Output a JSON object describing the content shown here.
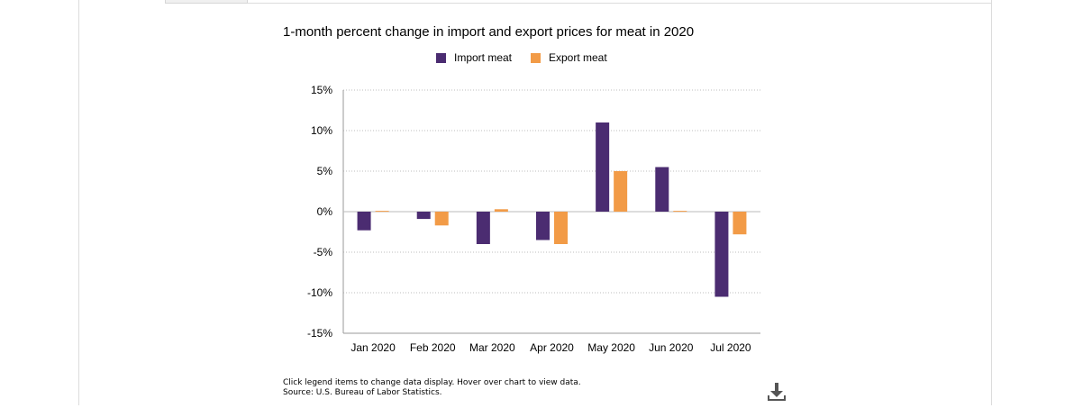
{
  "chart_data": {
    "type": "bar",
    "title": "1-month percent change in import and export prices for meat in 2020",
    "categories": [
      "Jan 2020",
      "Feb 2020",
      "Mar 2020",
      "Apr 2020",
      "May 2020",
      "Jun 2020",
      "Jul 2020"
    ],
    "series": [
      {
        "name": "Import meat",
        "color": "#4b2c71",
        "values": [
          -2.3,
          -0.9,
          -4.0,
          -3.5,
          11.0,
          5.5,
          -10.5
        ]
      },
      {
        "name": "Export meat",
        "color": "#f29b47",
        "values": [
          0.1,
          -1.7,
          0.3,
          -4.0,
          5.0,
          0.1,
          -2.8
        ]
      }
    ],
    "yticks": [
      "15%",
      "10%",
      "5%",
      "0%",
      "-5%",
      "-10%",
      "-15%"
    ],
    "ylim": [
      -15,
      15
    ],
    "ytick_values": [
      15,
      10,
      5,
      0,
      -5,
      -10,
      -15
    ],
    "grid": true,
    "legend_position": "top-center"
  },
  "footnote": {
    "line1": "Click legend items to change data display. Hover over chart to view data.",
    "line2": "Source: U.S. Bureau of Labor Statistics."
  },
  "icons": {
    "download": "download-icon"
  }
}
